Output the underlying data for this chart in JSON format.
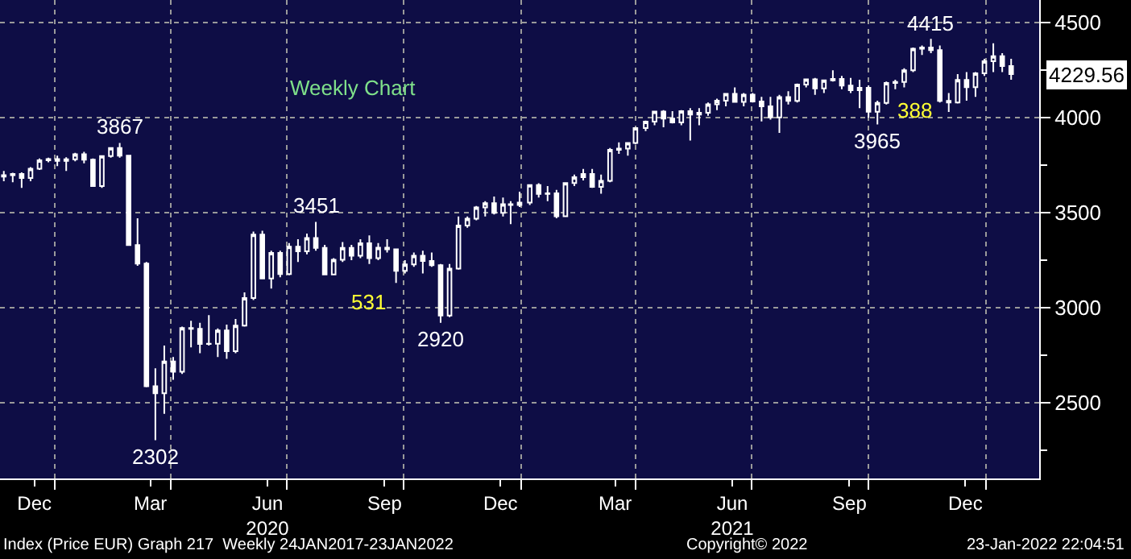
{
  "chart_data": {
    "type": "candlestick",
    "title": "Weekly Chart",
    "color": "#ffffff",
    "x": [
      "2019-11-22",
      "2019-11-29",
      "2019-12-06",
      "2019-12-13",
      "2019-12-20",
      "2019-12-27",
      "2020-01-03",
      "2020-01-10",
      "2020-01-17",
      "2020-01-24",
      "2020-01-31",
      "2020-02-07",
      "2020-02-14",
      "2020-02-21",
      "2020-02-28",
      "2020-03-06",
      "2020-03-13",
      "2020-03-20",
      "2020-03-27",
      "2020-04-03",
      "2020-04-10",
      "2020-04-17",
      "2020-04-24",
      "2020-05-01",
      "2020-05-08",
      "2020-05-15",
      "2020-05-22",
      "2020-05-29",
      "2020-06-05",
      "2020-06-12",
      "2020-06-19",
      "2020-06-26",
      "2020-07-03",
      "2020-07-10",
      "2020-07-17",
      "2020-07-24",
      "2020-07-31",
      "2020-08-07",
      "2020-08-14",
      "2020-08-21",
      "2020-08-28",
      "2020-09-04",
      "2020-09-11",
      "2020-09-18",
      "2020-09-25",
      "2020-10-02",
      "2020-10-09",
      "2020-10-16",
      "2020-10-23",
      "2020-10-30",
      "2020-11-06",
      "2020-11-13",
      "2020-11-20",
      "2020-11-27",
      "2020-12-04",
      "2020-12-11",
      "2020-12-18",
      "2020-12-24",
      "2020-12-31",
      "2021-01-08",
      "2021-01-15",
      "2021-01-22",
      "2021-01-29",
      "2021-02-05",
      "2021-02-12",
      "2021-02-19",
      "2021-02-26",
      "2021-03-05",
      "2021-03-12",
      "2021-03-19",
      "2021-03-26",
      "2021-04-01",
      "2021-04-09",
      "2021-04-16",
      "2021-04-23",
      "2021-04-30",
      "2021-05-07",
      "2021-05-14",
      "2021-05-21",
      "2021-05-28",
      "2021-06-04",
      "2021-06-11",
      "2021-06-18",
      "2021-06-25",
      "2021-07-02",
      "2021-07-09",
      "2021-07-16",
      "2021-07-23",
      "2021-07-30",
      "2021-08-06",
      "2021-08-13",
      "2021-08-20",
      "2021-08-27",
      "2021-09-03",
      "2021-09-10",
      "2021-09-17",
      "2021-09-24",
      "2021-10-01",
      "2021-10-08",
      "2021-10-15",
      "2021-10-22",
      "2021-10-29",
      "2021-11-05",
      "2021-11-12",
      "2021-11-19",
      "2021-11-26",
      "2021-12-03",
      "2021-12-10",
      "2021-12-17",
      "2021-12-24",
      "2021-12-31",
      "2022-01-07",
      "2022-01-14",
      "2022-01-21"
    ],
    "ohlc": [
      [
        3690,
        3720,
        3665,
        3697
      ],
      [
        3697,
        3710,
        3660,
        3704
      ],
      [
        3704,
        3712,
        3630,
        3682
      ],
      [
        3682,
        3740,
        3665,
        3731
      ],
      [
        3731,
        3785,
        3725,
        3776
      ],
      [
        3776,
        3790,
        3765,
        3782
      ],
      [
        3782,
        3800,
        3745,
        3773
      ],
      [
        3773,
        3792,
        3720,
        3781
      ],
      [
        3781,
        3815,
        3770,
        3808
      ],
      [
        3808,
        3820,
        3760,
        3779
      ],
      [
        3779,
        3785,
        3640,
        3640
      ],
      [
        3640,
        3800,
        3630,
        3798
      ],
      [
        3798,
        3845,
        3790,
        3840
      ],
      [
        3840,
        3867,
        3790,
        3800
      ],
      [
        3800,
        3800,
        3325,
        3329
      ],
      [
        3329,
        3470,
        3220,
        3232
      ],
      [
        3232,
        3240,
        2580,
        2586
      ],
      [
        2586,
        2680,
        2302,
        2549
      ],
      [
        2549,
        2800,
        2440,
        2716
      ],
      [
        2716,
        2740,
        2620,
        2662
      ],
      [
        2662,
        2900,
        2650,
        2892
      ],
      [
        2892,
        2930,
        2790,
        2888
      ],
      [
        2888,
        2920,
        2760,
        2809
      ],
      [
        2809,
        2960,
        2800,
        2810
      ],
      [
        2810,
        2890,
        2740,
        2880
      ],
      [
        2880,
        2910,
        2730,
        2770
      ],
      [
        2770,
        2940,
        2760,
        2905
      ],
      [
        2905,
        3080,
        2900,
        3050
      ],
      [
        3050,
        3400,
        3040,
        3384
      ],
      [
        3384,
        3405,
        3150,
        3153
      ],
      [
        3153,
        3300,
        3100,
        3288
      ],
      [
        3288,
        3300,
        3160,
        3177
      ],
      [
        3177,
        3340,
        3170,
        3321
      ],
      [
        3321,
        3360,
        3240,
        3296
      ],
      [
        3296,
        3390,
        3280,
        3366
      ],
      [
        3366,
        3451,
        3300,
        3314
      ],
      [
        3314,
        3330,
        3170,
        3174
      ],
      [
        3174,
        3260,
        3170,
        3252
      ],
      [
        3252,
        3345,
        3240,
        3314
      ],
      [
        3314,
        3330,
        3250,
        3273
      ],
      [
        3273,
        3360,
        3260,
        3339
      ],
      [
        3339,
        3380,
        3230,
        3260
      ],
      [
        3260,
        3340,
        3250,
        3316
      ],
      [
        3316,
        3360,
        3290,
        3307
      ],
      [
        3307,
        3310,
        3130,
        3193
      ],
      [
        3193,
        3250,
        3180,
        3227
      ],
      [
        3227,
        3290,
        3215,
        3273
      ],
      [
        3273,
        3300,
        3180,
        3245
      ],
      [
        3245,
        3290,
        3215,
        3223
      ],
      [
        3223,
        3230,
        2920,
        2958
      ],
      [
        2958,
        3230,
        2950,
        3205
      ],
      [
        3205,
        3480,
        3200,
        3432
      ],
      [
        3432,
        3480,
        3420,
        3468
      ],
      [
        3468,
        3535,
        3460,
        3528
      ],
      [
        3528,
        3560,
        3480,
        3550
      ],
      [
        3550,
        3585,
        3490,
        3499
      ],
      [
        3499,
        3580,
        3480,
        3544
      ],
      [
        3544,
        3560,
        3440,
        3540
      ],
      [
        3540,
        3610,
        3530,
        3553
      ],
      [
        3553,
        3650,
        3540,
        3645
      ],
      [
        3645,
        3655,
        3580,
        3599
      ],
      [
        3599,
        3640,
        3560,
        3602
      ],
      [
        3602,
        3620,
        3470,
        3481
      ],
      [
        3481,
        3660,
        3480,
        3656
      ],
      [
        3656,
        3700,
        3640,
        3687
      ],
      [
        3687,
        3730,
        3670,
        3704
      ],
      [
        3704,
        3730,
        3630,
        3636
      ],
      [
        3636,
        3700,
        3600,
        3668
      ],
      [
        3668,
        3840,
        3660,
        3831
      ],
      [
        3831,
        3870,
        3810,
        3837
      ],
      [
        3837,
        3870,
        3800,
        3867
      ],
      [
        3867,
        3950,
        3860,
        3946
      ],
      [
        3946,
        3985,
        3930,
        3979
      ],
      [
        3979,
        4035,
        3960,
        4032
      ],
      [
        4032,
        4040,
        3950,
        3995
      ],
      [
        3995,
        4035,
        3970,
        3975
      ],
      [
        3975,
        4040,
        3960,
        4035
      ],
      [
        4035,
        4050,
        3880,
        4017
      ],
      [
        4017,
        4050,
        3960,
        4026
      ],
      [
        4026,
        4080,
        4010,
        4071
      ],
      [
        4071,
        4100,
        4040,
        4090
      ],
      [
        4090,
        4130,
        4060,
        4126
      ],
      [
        4126,
        4160,
        4080,
        4083
      ],
      [
        4083,
        4130,
        4060,
        4121
      ],
      [
        4121,
        4130,
        4080,
        4085
      ],
      [
        4085,
        4110,
        3980,
        4060
      ],
      [
        4060,
        4110,
        3990,
        4002
      ],
      [
        4002,
        4120,
        3920,
        4109
      ],
      [
        4109,
        4140,
        4070,
        4089
      ],
      [
        4089,
        4180,
        4080,
        4175
      ],
      [
        4175,
        4205,
        4160,
        4202
      ],
      [
        4202,
        4210,
        4120,
        4154
      ],
      [
        4154,
        4200,
        4130,
        4197
      ],
      [
        4197,
        4250,
        4190,
        4204
      ],
      [
        4204,
        4220,
        4150,
        4169
      ],
      [
        4169,
        4210,
        4130,
        4145
      ],
      [
        4145,
        4200,
        4050,
        4158
      ],
      [
        4158,
        4170,
        4000,
        4031
      ],
      [
        4031,
        4090,
        3965,
        4078
      ],
      [
        4078,
        4190,
        4070,
        4183
      ],
      [
        4183,
        4200,
        4150,
        4188
      ],
      [
        4188,
        4260,
        4160,
        4250
      ],
      [
        4250,
        4370,
        4240,
        4363
      ],
      [
        4363,
        4380,
        4330,
        4370
      ],
      [
        4370,
        4415,
        4340,
        4356
      ],
      [
        4356,
        4380,
        4080,
        4089
      ],
      [
        4089,
        4130,
        4030,
        4080
      ],
      [
        4080,
        4230,
        4075,
        4199
      ],
      [
        4199,
        4240,
        4090,
        4161
      ],
      [
        4161,
        4240,
        4110,
        4234
      ],
      [
        4234,
        4310,
        4220,
        4298
      ],
      [
        4298,
        4392,
        4240,
        4324
      ],
      [
        4324,
        4340,
        4240,
        4272
      ],
      [
        4272,
        4310,
        4200,
        4229.56
      ]
    ],
    "xlim": [
      "2019-11-19",
      "2022-02-12"
    ],
    "xticks": [
      {
        "value": "2019-12-16",
        "label": "Dec"
      },
      {
        "value": "2020-03-16",
        "label": "Mar"
      },
      {
        "value": "2020-06-16",
        "label": "Jun\n2020"
      },
      {
        "value": "2020-09-16",
        "label": "Sep"
      },
      {
        "value": "2020-12-16",
        "label": "Dec"
      },
      {
        "value": "2021-03-16",
        "label": "Mar"
      },
      {
        "value": "2021-06-16",
        "label": "Jun\n2021"
      },
      {
        "value": "2021-09-16",
        "label": "Sep"
      },
      {
        "value": "2021-12-16",
        "label": "Dec"
      },
      {
        "value": "2020-01-01",
        "label": null
      },
      {
        "value": "2020-04-01",
        "label": null
      },
      {
        "value": "2020-07-01",
        "label": null
      },
      {
        "value": "2020-10-01",
        "label": null
      },
      {
        "value": "2021-01-01",
        "label": null
      },
      {
        "value": "2021-04-01",
        "label": null
      },
      {
        "value": "2021-07-01",
        "label": null
      },
      {
        "value": "2021-10-01",
        "label": null
      },
      {
        "value": "2022-01-01",
        "label": null
      }
    ],
    "ylim": [
      2100,
      4620
    ],
    "yticks": [
      2500,
      3000,
      3500,
      4000,
      4500,
      {
        "value": 2250,
        "label": null
      },
      {
        "value": 2750,
        "label": null
      },
      {
        "value": 3250,
        "label": null
      },
      {
        "value": 3750,
        "label": null
      },
      {
        "value": 4250,
        "label": null
      }
    ],
    "grid": true,
    "annotations": [
      {
        "text": "3867",
        "x": "2020-02-21",
        "y": 3867
      },
      {
        "text": "2302",
        "x": "2020-03-20",
        "y": 2302
      },
      {
        "text": "3451",
        "x": "2020-07-24",
        "y": 3451
      },
      {
        "text": "2920",
        "x": "2020-10-30",
        "y": 2920
      },
      {
        "text": "3965",
        "x": "2021-10-08",
        "y": 3965
      },
      {
        "text": "4415",
        "x": "2021-11-19",
        "y": 4415
      },
      "531",
      "388",
      "4229.56",
      "Index (Price EUR) Graph 217  Weekly 24JAN2017-23JAN2022",
      "Copyright© 2022",
      "23-Jan-2022 22:04:51"
    ]
  }
}
